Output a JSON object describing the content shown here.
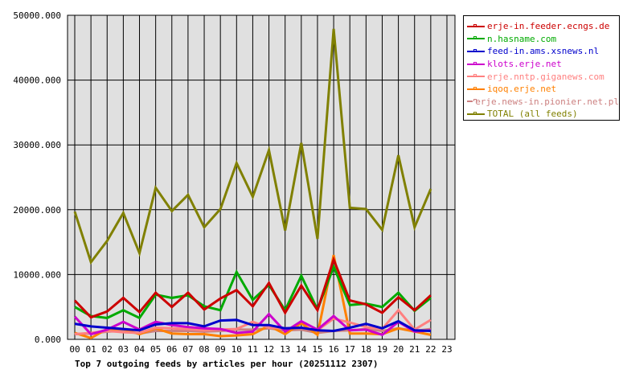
{
  "chart_data": {
    "type": "line",
    "title": "Top 7 outgoing feeds by articles per hour (20251112 2307)",
    "xlabel": "",
    "ylabel": "",
    "ylim": [
      0,
      50000
    ],
    "grid": true,
    "legend_position": "right",
    "x": [
      "00",
      "01",
      "02",
      "03",
      "04",
      "05",
      "06",
      "07",
      "08",
      "09",
      "10",
      "11",
      "12",
      "13",
      "14",
      "15",
      "16",
      "17",
      "18",
      "19",
      "20",
      "21",
      "22",
      "23"
    ],
    "y_ticks": [
      "0.000",
      "10000.000",
      "20000.000",
      "30000.000",
      "40000.000",
      "50000.000"
    ],
    "series": [
      {
        "name": "erje-in.feeder.ecngs.de",
        "color": "#cc0000",
        "values": [
          6000,
          3400,
          4300,
          6400,
          4200,
          7200,
          5000,
          7200,
          4600,
          6300,
          7600,
          5100,
          8700,
          4100,
          8300,
          4500,
          12300,
          6000,
          5400,
          4100,
          6500,
          4500,
          6800,
          null
        ]
      },
      {
        "name": "n.hasname.com",
        "color": "#00aa00",
        "values": [
          5000,
          3600,
          3300,
          4500,
          3300,
          6900,
          6400,
          6800,
          5100,
          4500,
          10400,
          6100,
          8400,
          4500,
          9800,
          4600,
          11200,
          5300,
          5500,
          5000,
          7200,
          4400,
          6400,
          null
        ]
      },
      {
        "name": "feed-in.ams.xsnews.nl",
        "color": "#0000cc",
        "values": [
          2400,
          2000,
          1800,
          1600,
          1400,
          2300,
          2500,
          2500,
          2000,
          2900,
          3000,
          2200,
          2200,
          1700,
          1800,
          1400,
          1300,
          1800,
          2400,
          1700,
          2800,
          1400,
          1300,
          null
        ]
      },
      {
        "name": "klots.erje.net",
        "color": "#cc00cc",
        "values": [
          3500,
          800,
          1500,
          2700,
          1500,
          2700,
          2200,
          1900,
          1700,
          1600,
          1000,
          1200,
          3900,
          1200,
          2800,
          1500,
          3600,
          1400,
          1500,
          700,
          2700,
          1200,
          1400,
          null
        ]
      },
      {
        "name": "erje.nntp.giganews.com",
        "color": "#ff8080",
        "values": [
          800,
          1000,
          1300,
          1100,
          1000,
          1800,
          1700,
          1600,
          1400,
          1500,
          1600,
          2700,
          1800,
          1700,
          1800,
          1400,
          3200,
          2600,
          1900,
          1600,
          4500,
          1500,
          3000,
          null
        ]
      },
      {
        "name": "iqoq.erje.net",
        "color": "#ff8000",
        "values": [
          1000,
          200,
          1600,
          1600,
          800,
          1700,
          900,
          800,
          800,
          500,
          600,
          800,
          2100,
          800,
          2500,
          700,
          13000,
          900,
          900,
          800,
          1700,
          1200,
          700,
          null
        ]
      },
      {
        "name": "erje.news-in.pionier.net.pl",
        "color": "#cc8080",
        "values": [
          800,
          900,
          1200,
          1300,
          900,
          1300,
          1300,
          1300,
          1200,
          1300,
          1500,
          1500,
          1700,
          1400,
          1500,
          1000,
          1300,
          1400,
          1600,
          1300,
          1700,
          1300,
          1600,
          null
        ]
      },
      {
        "name": "TOTAL (all feeds)",
        "color": "#808000",
        "values": [
          19700,
          11900,
          15200,
          19500,
          13300,
          23400,
          19800,
          22300,
          17300,
          20100,
          27200,
          22000,
          29200,
          16800,
          30300,
          15500,
          47900,
          20300,
          20100,
          16900,
          28400,
          17300,
          23200,
          null
        ]
      }
    ]
  },
  "legend": {
    "items": [
      {
        "label": "erje-in.feeder.ecngs.de",
        "color": "#cc0000"
      },
      {
        "label": "n.hasname.com",
        "color": "#00aa00"
      },
      {
        "label": "feed-in.ams.xsnews.nl",
        "color": "#0000cc"
      },
      {
        "label": "klots.erje.net",
        "color": "#cc00cc"
      },
      {
        "label": "erje.nntp.giganews.com",
        "color": "#ff8080"
      },
      {
        "label": "iqoq.erje.net",
        "color": "#ff8000"
      },
      {
        "label": "erje.news-in.pionier.net.pl",
        "color": "#cc8080"
      },
      {
        "label": "TOTAL (all feeds)",
        "color": "#808000"
      }
    ]
  },
  "colors": {
    "plot_bg": "#e0e0e0",
    "grid": "#000000"
  }
}
